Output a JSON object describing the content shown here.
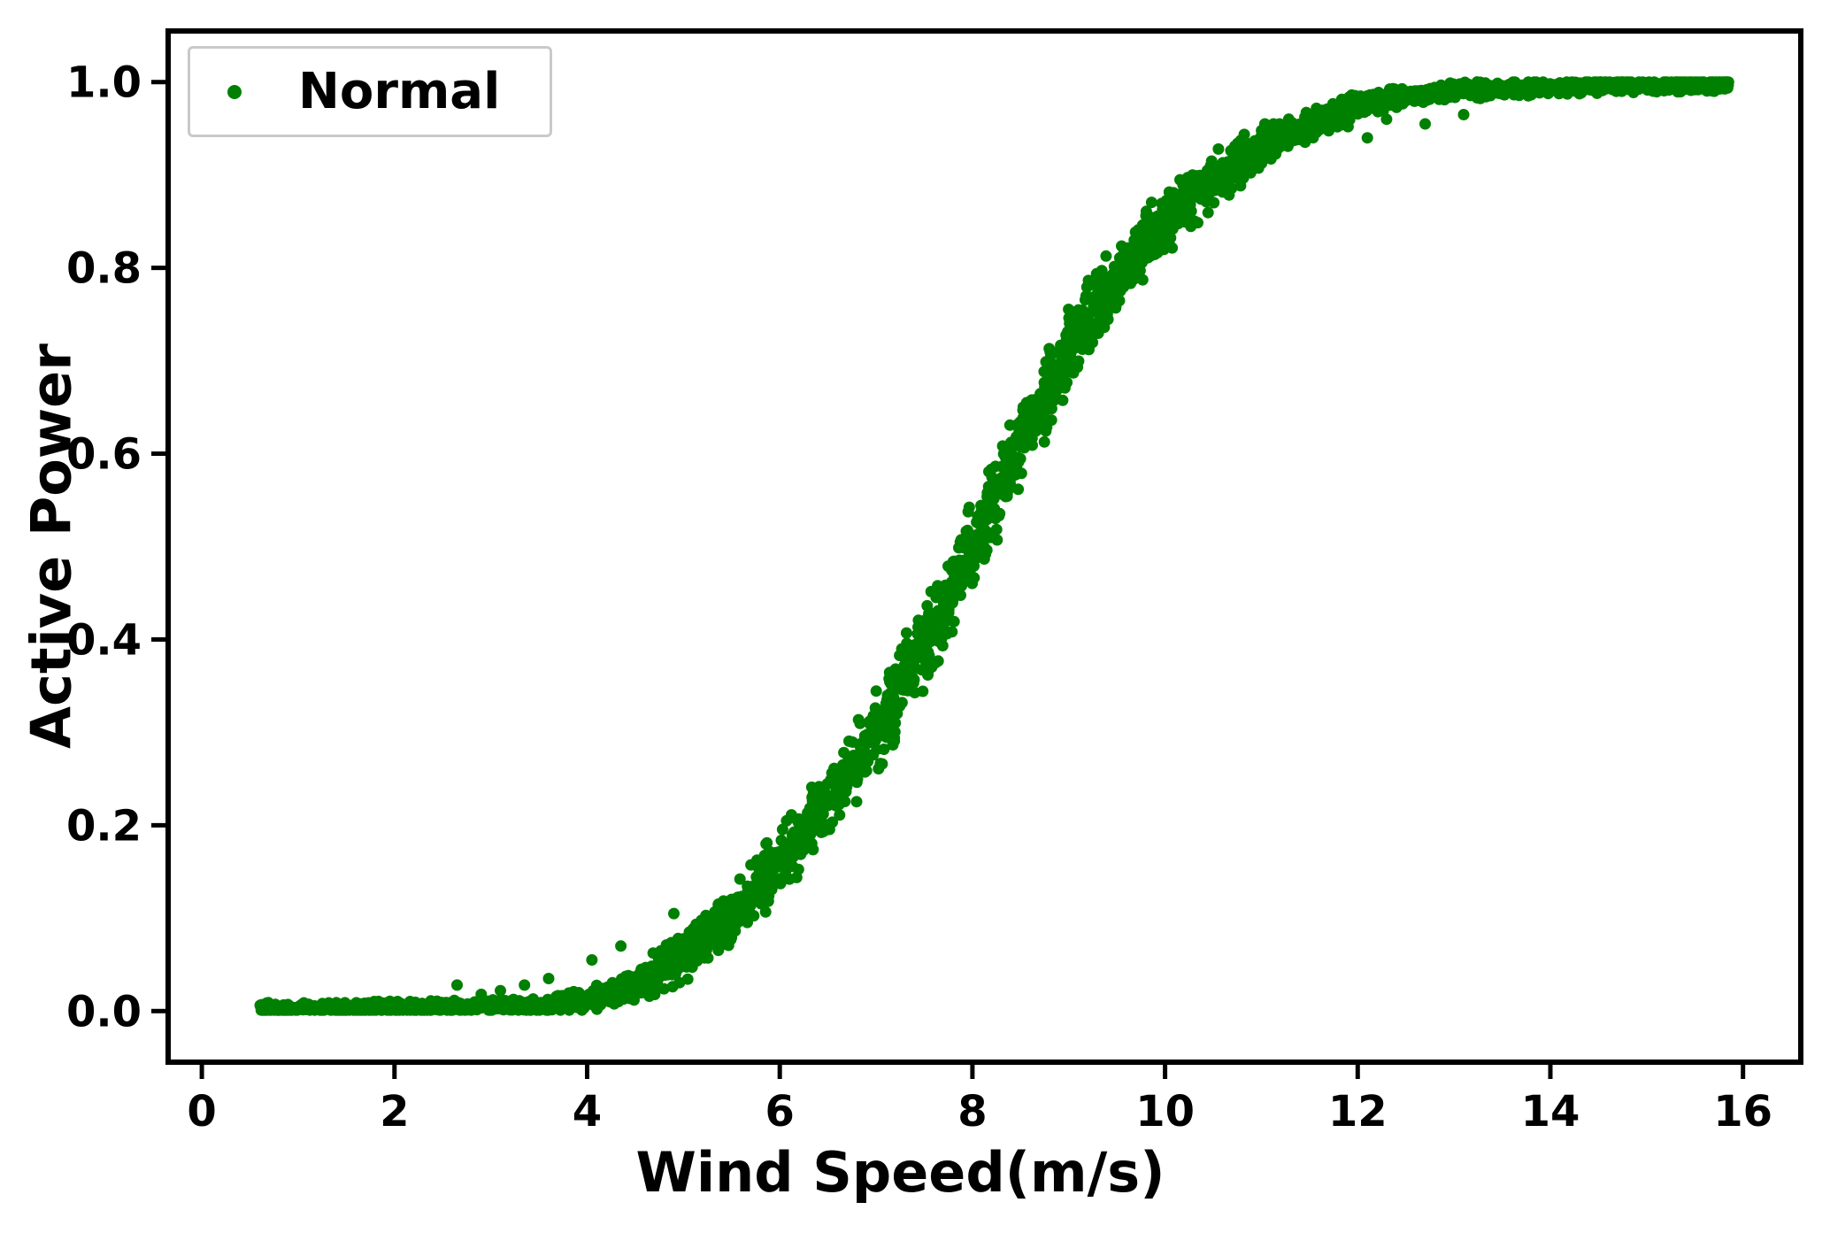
{
  "chart_data": {
    "type": "scatter",
    "title": "",
    "xlabel": "Wind Speed(m/s)",
    "ylabel": "Active Power",
    "xlim": [
      -0.35,
      16.6
    ],
    "ylim": [
      -0.055,
      1.055
    ],
    "grid": false,
    "legend_position": "upper-left",
    "xticks": {
      "values": [
        0,
        2,
        4,
        6,
        8,
        10,
        12,
        14,
        16
      ],
      "labels": [
        "0",
        "2",
        "4",
        "6",
        "8",
        "10",
        "12",
        "14",
        "16"
      ]
    },
    "yticks": {
      "values": [
        0.0,
        0.2,
        0.4,
        0.6,
        0.8,
        1.0
      ],
      "labels": [
        "0.0",
        "0.2",
        "0.4",
        "0.6",
        "0.8",
        "1.0"
      ]
    },
    "series": [
      {
        "name": "Normal",
        "color": "#008000",
        "marker": "dot",
        "marker_radius_px": 6.5,
        "n_points": 3800,
        "x_range": [
          0.6,
          15.85
        ],
        "curve_x": [
          0.6,
          1.0,
          2.0,
          3.0,
          3.5,
          4.0,
          4.3,
          4.6,
          5.0,
          5.5,
          6.0,
          6.5,
          7.0,
          7.5,
          8.0,
          8.5,
          9.0,
          9.5,
          10.0,
          10.5,
          11.0,
          11.5,
          12.0,
          12.5,
          13.0,
          14.0,
          15.0,
          15.85
        ],
        "curve_y": [
          0.003,
          0.003,
          0.004,
          0.005,
          0.006,
          0.012,
          0.022,
          0.035,
          0.06,
          0.1,
          0.16,
          0.225,
          0.3,
          0.395,
          0.5,
          0.61,
          0.71,
          0.79,
          0.85,
          0.895,
          0.93,
          0.955,
          0.975,
          0.985,
          0.99,
          0.995,
          0.997,
          0.997
        ],
        "sigma_x": [
          0.6,
          3.5,
          4.2,
          5.0,
          6.0,
          7.0,
          8.0,
          9.0,
          10.0,
          10.8,
          11.5,
          12.5,
          16.0
        ],
        "sigma_y": [
          0.0025,
          0.003,
          0.006,
          0.012,
          0.016,
          0.019,
          0.021,
          0.019,
          0.015,
          0.011,
          0.007,
          0.004,
          0.003
        ],
        "outliers": [
          [
            2.65,
            0.028
          ],
          [
            2.9,
            0.018
          ],
          [
            3.1,
            0.022
          ],
          [
            3.35,
            0.028
          ],
          [
            3.6,
            0.035
          ],
          [
            4.05,
            0.055
          ],
          [
            4.35,
            0.07
          ],
          [
            4.9,
            0.105
          ],
          [
            11.3,
            0.945
          ],
          [
            11.9,
            0.952
          ],
          [
            12.1,
            0.94
          ],
          [
            12.3,
            0.96
          ],
          [
            12.7,
            0.955
          ],
          [
            13.1,
            0.965
          ]
        ]
      }
    ],
    "legend": {
      "entries": [
        {
          "label": "Normal",
          "color": "#008000"
        }
      ]
    }
  },
  "figure": {
    "background": "#ffffff",
    "spine_color": "#000000",
    "text_color": "#000000"
  }
}
